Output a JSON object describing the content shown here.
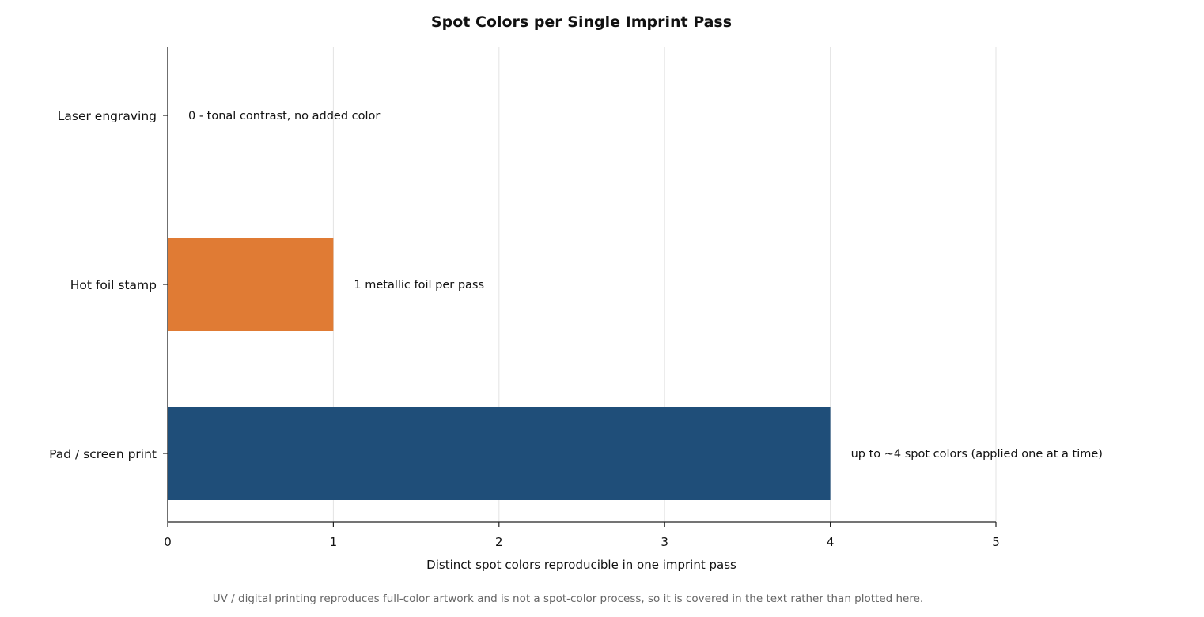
{
  "chart_data": {
    "type": "bar",
    "orientation": "horizontal",
    "title": "Spot Colors per Single Imprint Pass",
    "xlabel": "Distinct spot colors reproducible in one imprint pass",
    "ylabel": "",
    "xlim": [
      0,
      5
    ],
    "xticks": [
      0,
      1,
      2,
      3,
      4,
      5
    ],
    "grid": "vertical",
    "categories": [
      "Laser engraving",
      "Hot foil stamp",
      "Pad / screen print"
    ],
    "values": [
      0,
      1,
      4
    ],
    "colors": [
      "#1f4e79",
      "#e07b34",
      "#1f4e79"
    ],
    "annotations": [
      "0 - tonal contrast, no added color",
      "1 metallic foil per pass",
      "up to ~4 spot colors (applied one at a time)"
    ],
    "footnote": "UV / digital printing reproduces full-color artwork and is not a spot-color process, so it is covered in the text rather than plotted here."
  }
}
